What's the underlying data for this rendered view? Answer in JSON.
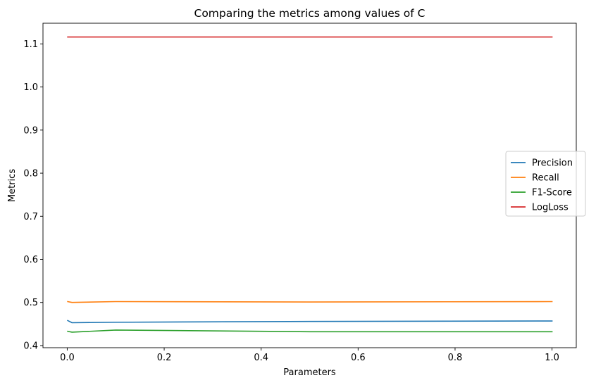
{
  "chart_data": {
    "type": "line",
    "title": "Comparing the metrics among values of C",
    "xlabel": "Parameters",
    "ylabel": "Metrics",
    "xlim": [
      -0.05,
      1.05
    ],
    "ylim": [
      0.395,
      1.148
    ],
    "xticks": [
      0.0,
      0.2,
      0.4,
      0.6,
      0.8,
      1.0
    ],
    "xtick_labels": [
      "0.0",
      "0.2",
      "0.4",
      "0.6",
      "0.8",
      "1.0"
    ],
    "yticks": [
      0.4,
      0.5,
      0.6,
      0.7,
      0.8,
      0.9,
      1.0,
      1.1
    ],
    "ytick_labels": [
      "0.4",
      "0.5",
      "0.6",
      "0.7",
      "0.8",
      "0.9",
      "1.0",
      "1.1"
    ],
    "grid": false,
    "legend_position": "center-right",
    "x": [
      0.001,
      0.01,
      0.1,
      0.5,
      1.0
    ],
    "series": [
      {
        "name": "Precision",
        "color": "#1f77b4",
        "values": [
          0.458,
          0.453,
          0.454,
          0.456,
          0.457
        ]
      },
      {
        "name": "Recall",
        "color": "#ff7f0e",
        "values": [
          0.502,
          0.5,
          0.502,
          0.501,
          0.502
        ]
      },
      {
        "name": "F1-Score",
        "color": "#2ca02c",
        "values": [
          0.433,
          0.431,
          0.436,
          0.432,
          0.432
        ]
      },
      {
        "name": "LogLoss",
        "color": "#d62728",
        "values": [
          1.116,
          1.116,
          1.116,
          1.116,
          1.116
        ]
      }
    ]
  }
}
